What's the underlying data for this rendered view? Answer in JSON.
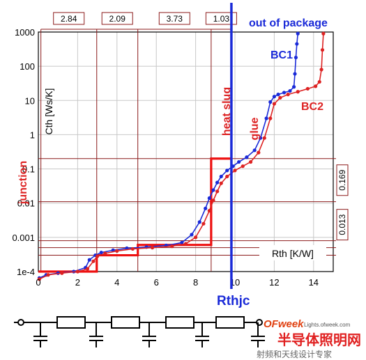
{
  "chart_data": {
    "type": "line",
    "xlabel": "Rth [K/W]",
    "ylabel": "Cth [Ws/K]",
    "x_ticks": [
      0,
      2,
      4,
      6,
      8,
      10,
      12,
      14
    ],
    "y_ticks": [
      "1e-4",
      "0.001",
      "0.01",
      "0.1",
      "1",
      "10",
      "100",
      "1000"
    ],
    "xlim": [
      0,
      15
    ],
    "ylim": [
      0.0001,
      1000
    ],
    "y_scale": "log",
    "series": [
      {
        "name": "BC1",
        "color": "#1a2ad8",
        "x": [
          0.05,
          0.4,
          1.0,
          1.8,
          2.4,
          2.6,
          2.9,
          3.2,
          3.8,
          4.5,
          5.5,
          6.5,
          7.3,
          7.8,
          8.2,
          8.5,
          8.7,
          8.9,
          9.1,
          9.3,
          9.6,
          9.9,
          10.2,
          10.6,
          11.0,
          11.3,
          11.6,
          11.8,
          12.0,
          12.2,
          12.5,
          12.8,
          13.0,
          13.05,
          13.1,
          13.15,
          13.2
        ],
        "y": [
          6.5e-05,
          8e-05,
          9e-05,
          0.0001,
          0.00013,
          0.00022,
          0.0003,
          0.00036,
          0.00042,
          0.00048,
          0.00052,
          0.00058,
          0.0007,
          0.0012,
          0.0028,
          0.007,
          0.014,
          0.024,
          0.04,
          0.06,
          0.09,
          0.12,
          0.16,
          0.22,
          0.35,
          0.8,
          3,
          9,
          13,
          15,
          17,
          19,
          25,
          60,
          180,
          450,
          900
        ]
      },
      {
        "name": "BC2",
        "color": "#dd2222",
        "x": [
          0.05,
          0.5,
          1.2,
          2.0,
          2.5,
          2.8,
          3.0,
          3.4,
          4.0,
          4.8,
          5.8,
          6.8,
          7.5,
          8.0,
          8.4,
          8.7,
          8.9,
          9.1,
          9.3,
          9.6,
          10.0,
          10.4,
          10.8,
          11.2,
          11.5,
          11.8,
          12.0,
          12.3,
          12.7,
          13.2,
          13.7,
          14.1,
          14.3,
          14.4,
          14.45,
          14.5
        ],
        "y": [
          6e-05,
          8e-05,
          9e-05,
          0.0001,
          0.00012,
          0.0002,
          0.00028,
          0.00034,
          0.0004,
          0.00046,
          0.0005,
          0.00055,
          0.00065,
          0.001,
          0.0025,
          0.006,
          0.012,
          0.022,
          0.038,
          0.06,
          0.09,
          0.12,
          0.16,
          0.3,
          0.8,
          3,
          8,
          12,
          15,
          18,
          22,
          26,
          35,
          80,
          300,
          900
        ]
      }
    ],
    "structure_function": {
      "name": "step",
      "color": "#ee1111",
      "x": [
        0,
        2.97,
        2.97,
        5.06,
        5.06,
        8.79,
        8.79,
        9.82,
        9.82
      ],
      "y": [
        0.0001,
        0.0001,
        0.0003,
        0.0003,
        0.0006,
        0.0006,
        0.2,
        0.2,
        0.2
      ]
    },
    "segments": {
      "values": [
        "2.84",
        "2.09",
        "3.73",
        "1.03"
      ],
      "x_bounds": [
        0.13,
        2.97,
        5.06,
        8.79,
        9.82
      ]
    },
    "right_segments": [
      "0.169",
      "0.013"
    ],
    "annotations": {
      "out_of_package": "out of package",
      "heat_slug": "heat slug",
      "glue": "glue",
      "junction": "junction",
      "rthjc": "Rthjc",
      "bc1": "BC1",
      "bc2": "BC2"
    },
    "rthjc_x": 9.82,
    "grid": true
  },
  "network": {
    "resistor_count": 4,
    "capacitor_count": 5
  },
  "watermark": {
    "brand": "OFweek",
    "url": "Lights.ofweek.com",
    "cn_title": "半导体照明网",
    "cn_sub": "射频和天线设计专家"
  }
}
